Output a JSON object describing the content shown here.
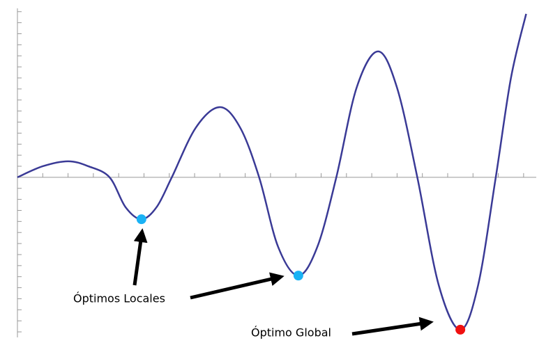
{
  "chart_data": {
    "type": "line",
    "x": [
      0,
      1.0,
      2.0,
      2.8,
      3.64,
      4.27,
      4.9,
      5.5,
      6.1,
      7.05,
      8.0,
      8.8,
      9.55,
      10.3,
      11.1,
      11.85,
      12.6,
      13.4,
      14.25,
      15.0,
      15.8,
      16.65,
      17.5,
      18.2,
      18.9,
      19.5,
      20.1
    ],
    "series": [
      {
        "color": "#3a3a96",
        "values": [
          0,
          1.0,
          1.45,
          1.0,
          0,
          -2.7,
          -3.8,
          -2.7,
          0,
          4.5,
          6.35,
          4.5,
          0,
          -6.3,
          -8.9,
          -6.3,
          0,
          8.1,
          11.4,
          8.1,
          0,
          -9.8,
          -13.8,
          -9.8,
          0,
          9.0,
          14.8
        ]
      }
    ],
    "points": [
      {
        "x": 4.9,
        "y": -3.8,
        "color": "#1ab2f5"
      },
      {
        "x": 11.1,
        "y": -8.9,
        "color": "#1ab2f5"
      },
      {
        "x": 17.5,
        "y": -13.8,
        "color": "#f01010"
      }
    ],
    "annotations": [
      "Óptimos Locales",
      "Óptimo Global"
    ],
    "xlim": [
      0,
      20.5
    ],
    "ylim": [
      -14.5,
      15.3
    ],
    "xticks": [
      1,
      2,
      3,
      4,
      5,
      6,
      7,
      8,
      9,
      10,
      11,
      12,
      13,
      14,
      15,
      16,
      17,
      18,
      19,
      20
    ],
    "yticks": [
      -14,
      -13,
      -12,
      -11,
      -10,
      -9,
      -8,
      -7,
      -6,
      -5,
      -4,
      -3,
      -2,
      -1,
      1,
      2,
      3,
      4,
      5,
      6,
      7,
      8,
      9,
      10,
      11,
      12,
      13,
      14,
      15
    ]
  }
}
